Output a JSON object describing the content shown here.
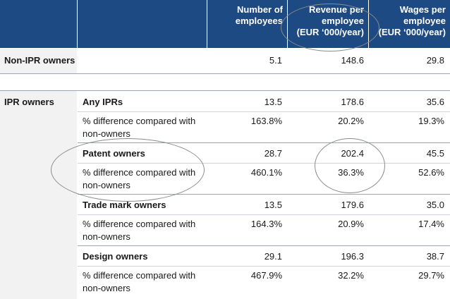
{
  "header": {
    "col_employees": [
      "Number of",
      "employees"
    ],
    "col_revenue": [
      "Revenue per",
      "employee",
      "(EUR ‘000/year)"
    ],
    "col_wages": [
      "Wages per",
      "employee",
      "(EUR ‘000/year)"
    ]
  },
  "non_ipr": {
    "label": "Non-IPR owners",
    "employees": "5.1",
    "revenue": "148.6",
    "wages": "29.8"
  },
  "ipr": {
    "label": "IPR owners",
    "groups": [
      {
        "label": "Any IPRs",
        "employees": "13.5",
        "revenue": "178.6",
        "wages": "35.6",
        "diff_label": [
          "% difference compared with",
          "non-owners"
        ],
        "diff_employees": "163.8%",
        "diff_revenue": "20.2%",
        "diff_wages": "19.3%"
      },
      {
        "label": "Patent owners",
        "employees": "28.7",
        "revenue": "202.4",
        "wages": "45.5",
        "diff_label": [
          "% difference compared with",
          "non-owners"
        ],
        "diff_employees": "460.1%",
        "diff_revenue": "36.3%",
        "diff_wages": "52.6%"
      },
      {
        "label": "Trade mark owners",
        "employees": "13.5",
        "revenue": "179.6",
        "wages": "35.0",
        "diff_label": [
          "% difference compared with",
          "non-owners"
        ],
        "diff_employees": "164.3%",
        "diff_revenue": "20.9%",
        "diff_wages": "17.4%"
      },
      {
        "label": "Design owners",
        "employees": "29.1",
        "revenue": "196.3",
        "wages": "38.7",
        "diff_label": [
          "% difference compared with",
          "non-owners"
        ],
        "diff_employees": "467.9%",
        "diff_revenue": "32.2%",
        "diff_wages": "29.7%"
      }
    ]
  },
  "colors": {
    "header_bg": "#1d4a82",
    "header_text": "#ffffff",
    "row_label_bg": "#f2f2f2",
    "annotation_oval": "#8b8b8b"
  }
}
